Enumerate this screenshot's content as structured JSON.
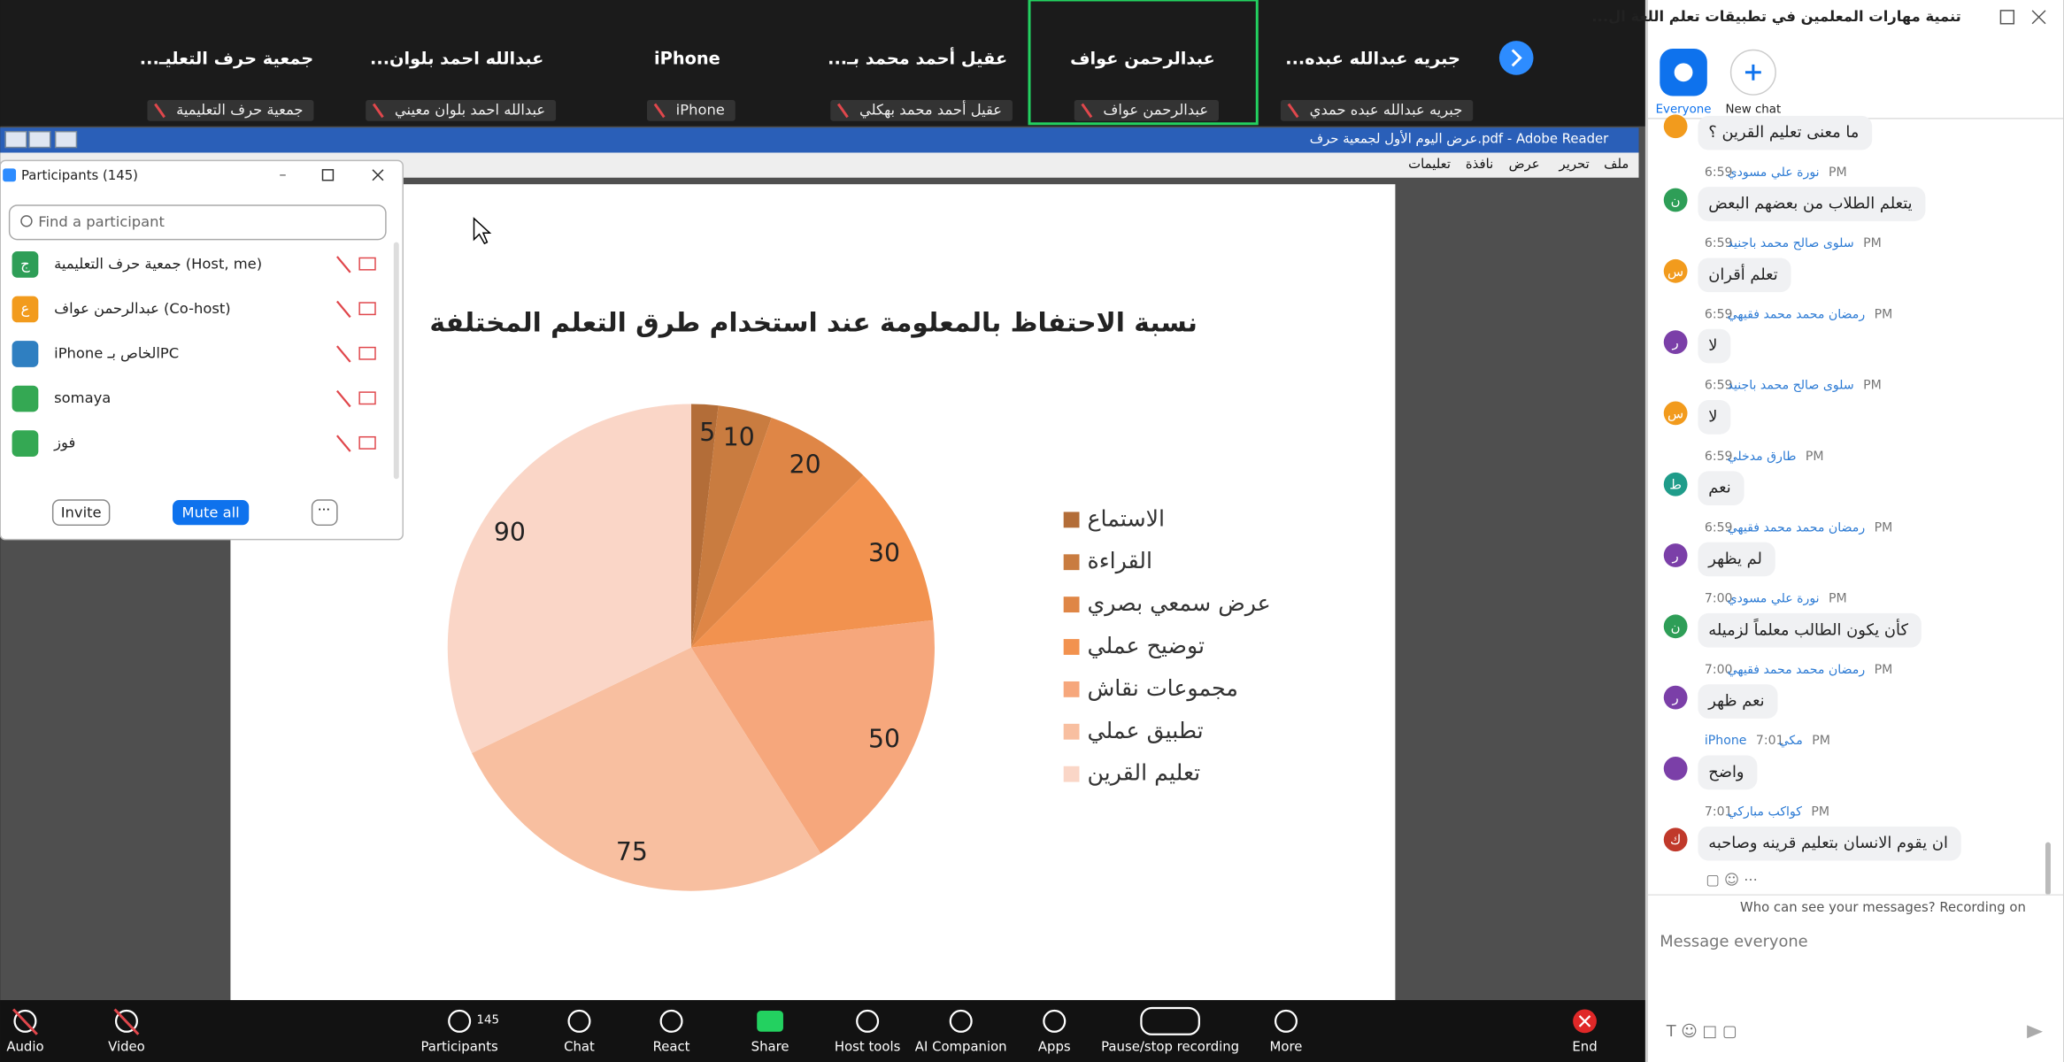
{
  "video_strip": {
    "tiles": [
      {
        "name": "...جمعية حرف التعليـ",
        "label": "جمعية حرف التعليمية"
      },
      {
        "name": "...عبدالله احمد بلوان",
        "label": "عبدالله احمد بلوان معيني"
      },
      {
        "name": "iPhone",
        "label": "iPhone"
      },
      {
        "name": "...عقيل أحمد محمد بـ",
        "label": "عقيل أحمد محمد بهكلي"
      },
      {
        "name": "عبدالرحمن عواف",
        "label": "عبدالرحمن عواف"
      },
      {
        "name": "...جبريه عبدالله عبده",
        "label": "جبريه عبدالله عبده حمدي"
      }
    ]
  },
  "reader": {
    "title": "عرض اليوم الأول لجمعية حرف.pdf - Adobe Reader",
    "menu": [
      "ملف",
      "تحرير",
      "عرض",
      "نافذة",
      "تعليمات"
    ]
  },
  "slide": {
    "chart": {
      "type": "pie",
      "title": "نسبة الاحتفاظ بالمعلومة عند استخدام طرق التعلم المختلفة",
      "categories": [
        "الاستماع",
        "القراءة",
        "عرض سمعي بصري",
        "توضيح عملي",
        "مجموعات نقاش",
        "تطبيق عملي",
        "تعليم القرين"
      ],
      "values": [
        5,
        10,
        20,
        30,
        50,
        75,
        90
      ],
      "colors": [
        "#b36d38",
        "#c97c40",
        "#df8646",
        "#f2924f",
        "#f6a77c",
        "#f8bfa0",
        "#fad6c7"
      ]
    }
  },
  "participants": {
    "title": "Participants (145)",
    "search": "Find a participant",
    "rows": [
      {
        "avatar": "ج",
        "color": "#2e9e57",
        "name": "جمعية حرف التعليمية (Host, me)"
      },
      {
        "avatar": "ع",
        "color": "#f29b1d",
        "name": "عبدالرحمن عواف (Co-host)"
      },
      {
        "color": "#2f7fc1",
        "name": "iPhone الخاص بـPC"
      },
      {
        "color": "#34a853",
        "name": "somaya"
      },
      {
        "color": "#34a853",
        "name": "فوز"
      }
    ],
    "buttons": [
      "Invite",
      "Mute all"
    ]
  },
  "chat": {
    "title": "...تنمية مهارات المعلمين في تطبيقات تعلم اللغة ال",
    "tabs": [
      "Everyone",
      "New chat"
    ],
    "earlier_message": "ما معنى تعليم القرين ؟",
    "messages": [
      {
        "sender": "نورة علي مسودي",
        "time": "6:59 PM",
        "text": "يتعلم الطلاب من بعضهم البعض",
        "avatar": "ن",
        "color": "#2e9e57"
      },
      {
        "sender": "سلوى صالح محمد باجنيد",
        "time": "6:59 PM",
        "text": "تعلم أقران",
        "avatar": "س",
        "color": "#f29b1d"
      },
      {
        "sender": "رمضان محمد محمد فقيهي",
        "time": "6:59 PM",
        "text": "لا",
        "avatar": "ر",
        "color": "#7b3fa8"
      },
      {
        "sender": "سلوى صالح محمد باجنيد",
        "time": "6:59 PM",
        "text": "لا",
        "avatar": "س",
        "color": "#f29b1d"
      },
      {
        "sender": "طارق مدخلي",
        "time": "6:59 PM",
        "text": "نعم",
        "avatar": "ط",
        "color": "#1f9c8a"
      },
      {
        "sender": "رمضان محمد محمد فقيهي",
        "time": "6:59 PM",
        "text": "لم يظهر",
        "avatar": "ر",
        "color": "#7b3fa8"
      },
      {
        "sender": "نورة علي مسودي",
        "time": "7:00 PM",
        "text": "كأن يكون الطالب معلماً لزميله",
        "avatar": "ن",
        "color": "#2e9e57"
      },
      {
        "sender": "رمضان محمد محمد فقيهي",
        "time": "7:00 PM",
        "text": "نعم ظهر",
        "avatar": "ر",
        "color": "#7b3fa8"
      },
      {
        "sender": "iPhone مكي",
        "time": "7:01 PM",
        "text": "واضح",
        "color": "#7b3fa8"
      },
      {
        "sender": "كواكب مباركي",
        "time": "7:01 PM",
        "text": "ان يقوم الانسان بتعليم قرينه وصاحبه",
        "avatar": "ك",
        "color": "#c0392b"
      }
    ],
    "notice": "Who can see your messages? Recording on",
    "input": "Message everyone"
  },
  "toolbar": {
    "participant_count": 145,
    "items": [
      "Audio",
      "Video",
      "Participants",
      "Chat",
      "React",
      "Share",
      "Host tools",
      "AI Companion",
      "Apps",
      "Pause/stop recording",
      "More",
      "End"
    ]
  }
}
